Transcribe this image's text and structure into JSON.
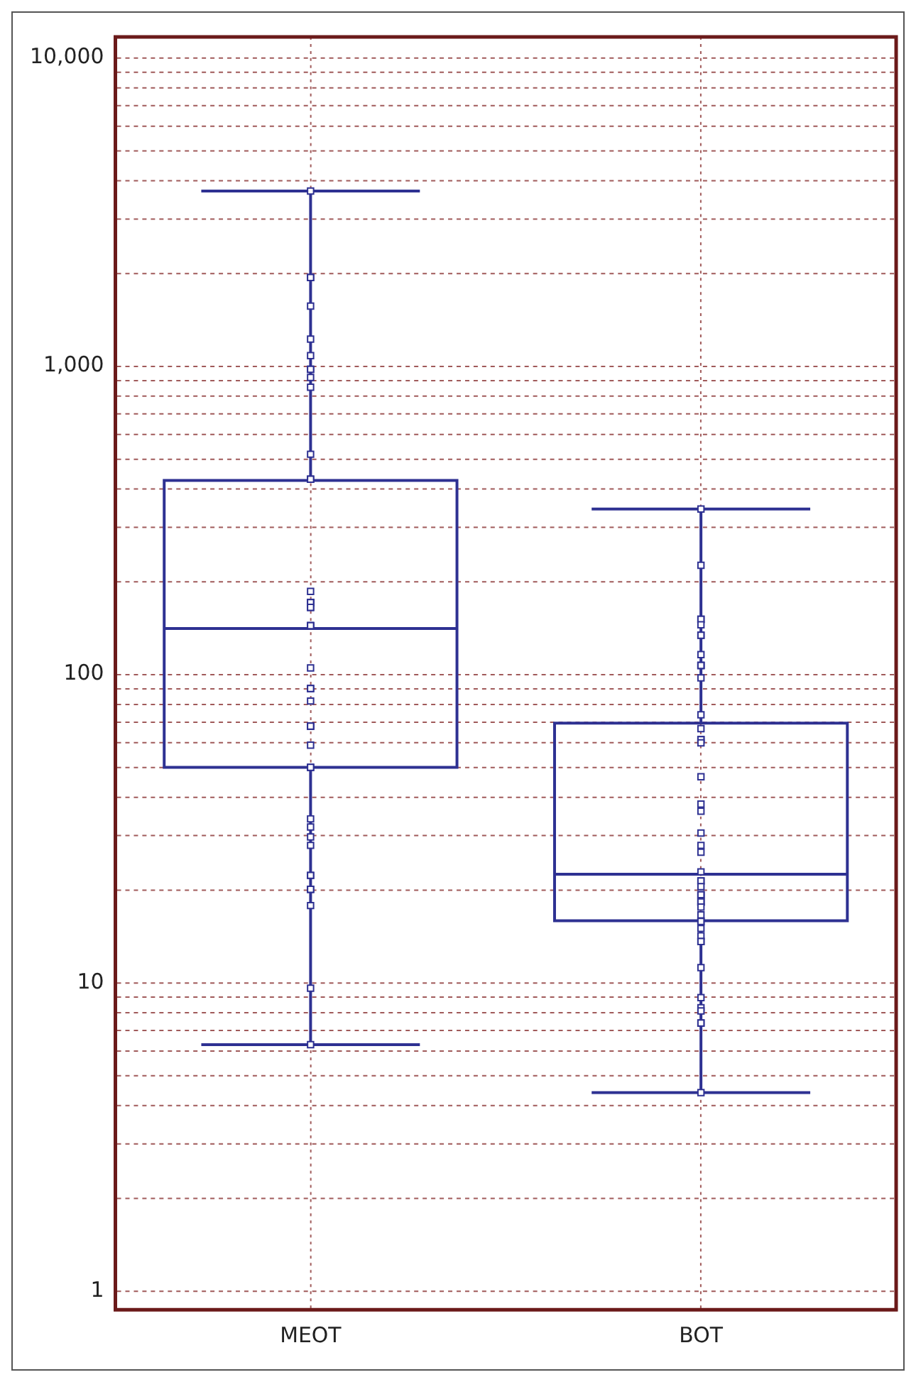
{
  "chart_data": {
    "type": "box",
    "categories": [
      "MEOT",
      "BOT"
    ],
    "series": [
      {
        "type": "box",
        "color": "#2e3192",
        "boxes": [
          {
            "low": 6.3,
            "q1": 50,
            "median": 141,
            "q3": 426,
            "high": 3700
          },
          {
            "low": 4.4,
            "q1": 15.9,
            "median": 22.5,
            "q3": 69.5,
            "high": 344
          }
        ]
      },
      {
        "type": "scatter",
        "color": "#2e3192",
        "x": [
          "MEOT",
          "MEOT",
          "MEOT",
          "MEOT",
          "MEOT",
          "MEOT",
          "MEOT",
          "MEOT",
          "MEOT",
          "MEOT",
          "MEOT",
          "MEOT",
          "MEOT",
          "MEOT",
          "MEOT",
          "MEOT",
          "MEOT",
          "MEOT",
          "MEOT",
          "MEOT",
          "MEOT",
          "MEOT",
          "MEOT",
          "MEOT",
          "MEOT",
          "MEOT",
          "MEOT",
          "MEOT",
          "MEOT",
          "MEOT",
          "MEOT",
          "MEOT",
          "MEOT",
          "MEOT",
          "MEOT",
          "MEOT",
          "MEOT",
          "MEOT",
          "MEOT",
          "MEOT",
          "MEOT",
          "MEOT",
          "MEOT",
          "MEOT",
          "BOT",
          "BOT",
          "BOT",
          "BOT",
          "BOT",
          "BOT",
          "BOT",
          "BOT",
          "BOT",
          "BOT",
          "BOT",
          "BOT",
          "BOT",
          "BOT",
          "BOT",
          "BOT",
          "BOT",
          "BOT",
          "BOT",
          "BOT",
          "BOT",
          "BOT",
          "BOT",
          "BOT",
          "BOT",
          "BOT",
          "BOT",
          "BOT",
          "BOT",
          "BOT",
          "BOT",
          "BOT",
          "BOT",
          "BOT",
          "BOT",
          "BOT",
          "BOT",
          "BOT",
          "BOT",
          "BOT",
          "BOT",
          "BOT",
          "BOT",
          "BOT",
          "BOT",
          "BOT",
          "BOT",
          "BOT"
        ],
        "values": [
          3700,
          1940,
          1940,
          1566,
          1224,
          1082,
          977,
          977,
          919,
          855,
          518,
          430,
          430,
          186,
          171,
          171,
          171,
          171,
          165,
          165,
          144,
          144,
          144,
          105,
          90,
          90,
          82,
          68,
          68,
          68,
          59,
          50,
          50,
          34,
          32,
          29.7,
          27.9,
          22.3,
          22.3,
          20.1,
          20.1,
          17.8,
          9.6,
          6.3,
          344,
          226,
          151,
          151,
          145,
          134,
          134,
          116,
          107,
          107,
          107,
          97.5,
          74,
          66.7,
          61.5,
          61.5,
          60,
          46.6,
          38,
          36,
          30.6,
          27.9,
          26.5,
          22.9,
          21.4,
          21.4,
          20.5,
          19.3,
          19.3,
          19.3,
          18.3,
          18.3,
          18.3,
          17.6,
          16.6,
          15.8,
          15.8,
          15,
          14.2,
          13.6,
          13.6,
          11.2,
          8.95,
          8.3,
          8.1,
          7.4,
          7.4,
          4.4
        ]
      }
    ],
    "ylim": [
      0.87,
      11700
    ],
    "yticks": [
      1,
      {
        "value": 2,
        "label": null
      },
      {
        "value": 3,
        "label": null
      },
      {
        "value": 4,
        "label": null
      },
      {
        "value": 5,
        "label": null
      },
      {
        "value": 6,
        "label": null
      },
      {
        "value": 7,
        "label": null
      },
      {
        "value": 8,
        "label": null
      },
      {
        "value": 9,
        "label": null
      },
      10,
      {
        "value": 20,
        "label": null
      },
      {
        "value": 30,
        "label": null
      },
      {
        "value": 40,
        "label": null
      },
      {
        "value": 50,
        "label": null
      },
      {
        "value": 60,
        "label": null
      },
      {
        "value": 70,
        "label": null
      },
      {
        "value": 80,
        "label": null
      },
      {
        "value": 90,
        "label": null
      },
      100,
      {
        "value": 200,
        "label": null
      },
      {
        "value": 300,
        "label": null
      },
      {
        "value": 400,
        "label": null
      },
      {
        "value": 500,
        "label": null
      },
      {
        "value": 600,
        "label": null
      },
      {
        "value": 700,
        "label": null
      },
      {
        "value": 800,
        "label": null
      },
      {
        "value": 900,
        "label": null
      },
      {
        "value": 1000,
        "label": "1,000"
      },
      {
        "value": 2000,
        "label": null
      },
      {
        "value": 3000,
        "label": null
      },
      {
        "value": 4000,
        "label": null
      },
      {
        "value": 5000,
        "label": null
      },
      {
        "value": 6000,
        "label": null
      },
      {
        "value": 7000,
        "label": null
      },
      {
        "value": 8000,
        "label": null
      },
      {
        "value": 9000,
        "label": null
      },
      {
        "value": 10000,
        "label": "10,000"
      }
    ],
    "log": true,
    "grid": true,
    "marker": "square"
  }
}
